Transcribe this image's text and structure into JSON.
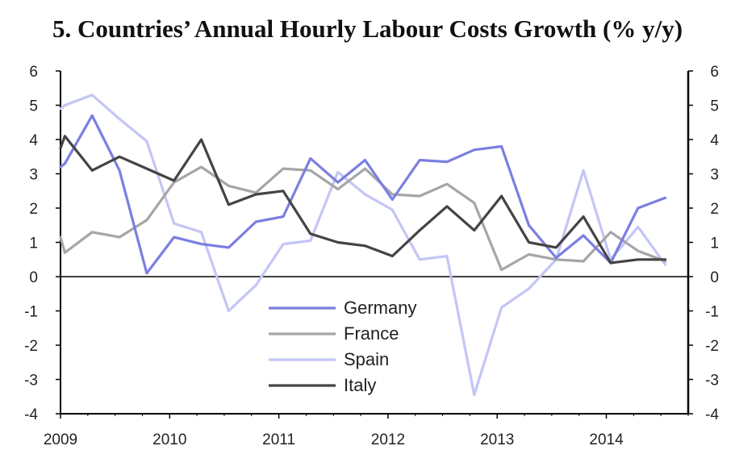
{
  "chart_data": {
    "type": "line",
    "title": "5. Countries’ Annual Hourly Labour Costs Growth (% y/y)",
    "xlabel": "",
    "ylabel": "",
    "ylim": [
      -4,
      6
    ],
    "yticks": [
      -4,
      -3,
      -2,
      -1,
      0,
      1,
      2,
      3,
      4,
      5,
      6
    ],
    "xlim": [
      2009.0,
      2014.75
    ],
    "xticks": [
      2009,
      2010,
      2011,
      2012,
      2013,
      2014
    ],
    "grid": false,
    "legend": "center-bottom",
    "x": [
      2009.0,
      2009.04,
      2009.29,
      2009.54,
      2009.79,
      2010.04,
      2010.29,
      2010.54,
      2010.79,
      2011.04,
      2011.29,
      2011.54,
      2011.79,
      2012.04,
      2012.29,
      2012.54,
      2012.79,
      2013.04,
      2013.29,
      2013.54,
      2013.79,
      2014.04,
      2014.29,
      2014.54
    ],
    "series": [
      {
        "name": "Germany",
        "color": "#7b7fe0",
        "values": [
          3.2,
          3.3,
          4.7,
          3.1,
          0.1,
          1.15,
          0.95,
          0.85,
          1.6,
          1.75,
          3.45,
          2.75,
          3.4,
          2.25,
          3.4,
          3.35,
          3.7,
          3.8,
          1.5,
          0.55,
          1.2,
          0.4,
          2.0,
          2.3
        ]
      },
      {
        "name": "France",
        "color": "#a6a6a6",
        "values": [
          1.15,
          0.7,
          1.3,
          1.15,
          1.65,
          2.75,
          3.2,
          2.65,
          2.45,
          3.15,
          3.1,
          2.55,
          3.15,
          2.4,
          2.35,
          2.7,
          2.15,
          0.2,
          0.65,
          0.5,
          0.45,
          1.3,
          0.75,
          0.45
        ]
      },
      {
        "name": "Spain",
        "color": "#c3c6f5",
        "values": [
          4.9,
          5.0,
          5.3,
          4.6,
          3.95,
          1.55,
          1.3,
          -1.0,
          -0.25,
          0.95,
          1.05,
          3.05,
          2.4,
          1.95,
          0.5,
          0.6,
          -3.45,
          -0.9,
          -0.35,
          0.5,
          3.1,
          0.5,
          1.45,
          0.35
        ]
      },
      {
        "name": "Italy",
        "color": "#444444",
        "values": [
          3.75,
          4.1,
          3.1,
          3.5,
          3.15,
          2.8,
          4.0,
          2.1,
          2.4,
          2.5,
          1.25,
          1.0,
          0.9,
          0.6,
          1.35,
          2.05,
          1.35,
          2.35,
          1.0,
          0.85,
          1.75,
          0.4,
          0.5,
          0.5
        ]
      }
    ]
  }
}
